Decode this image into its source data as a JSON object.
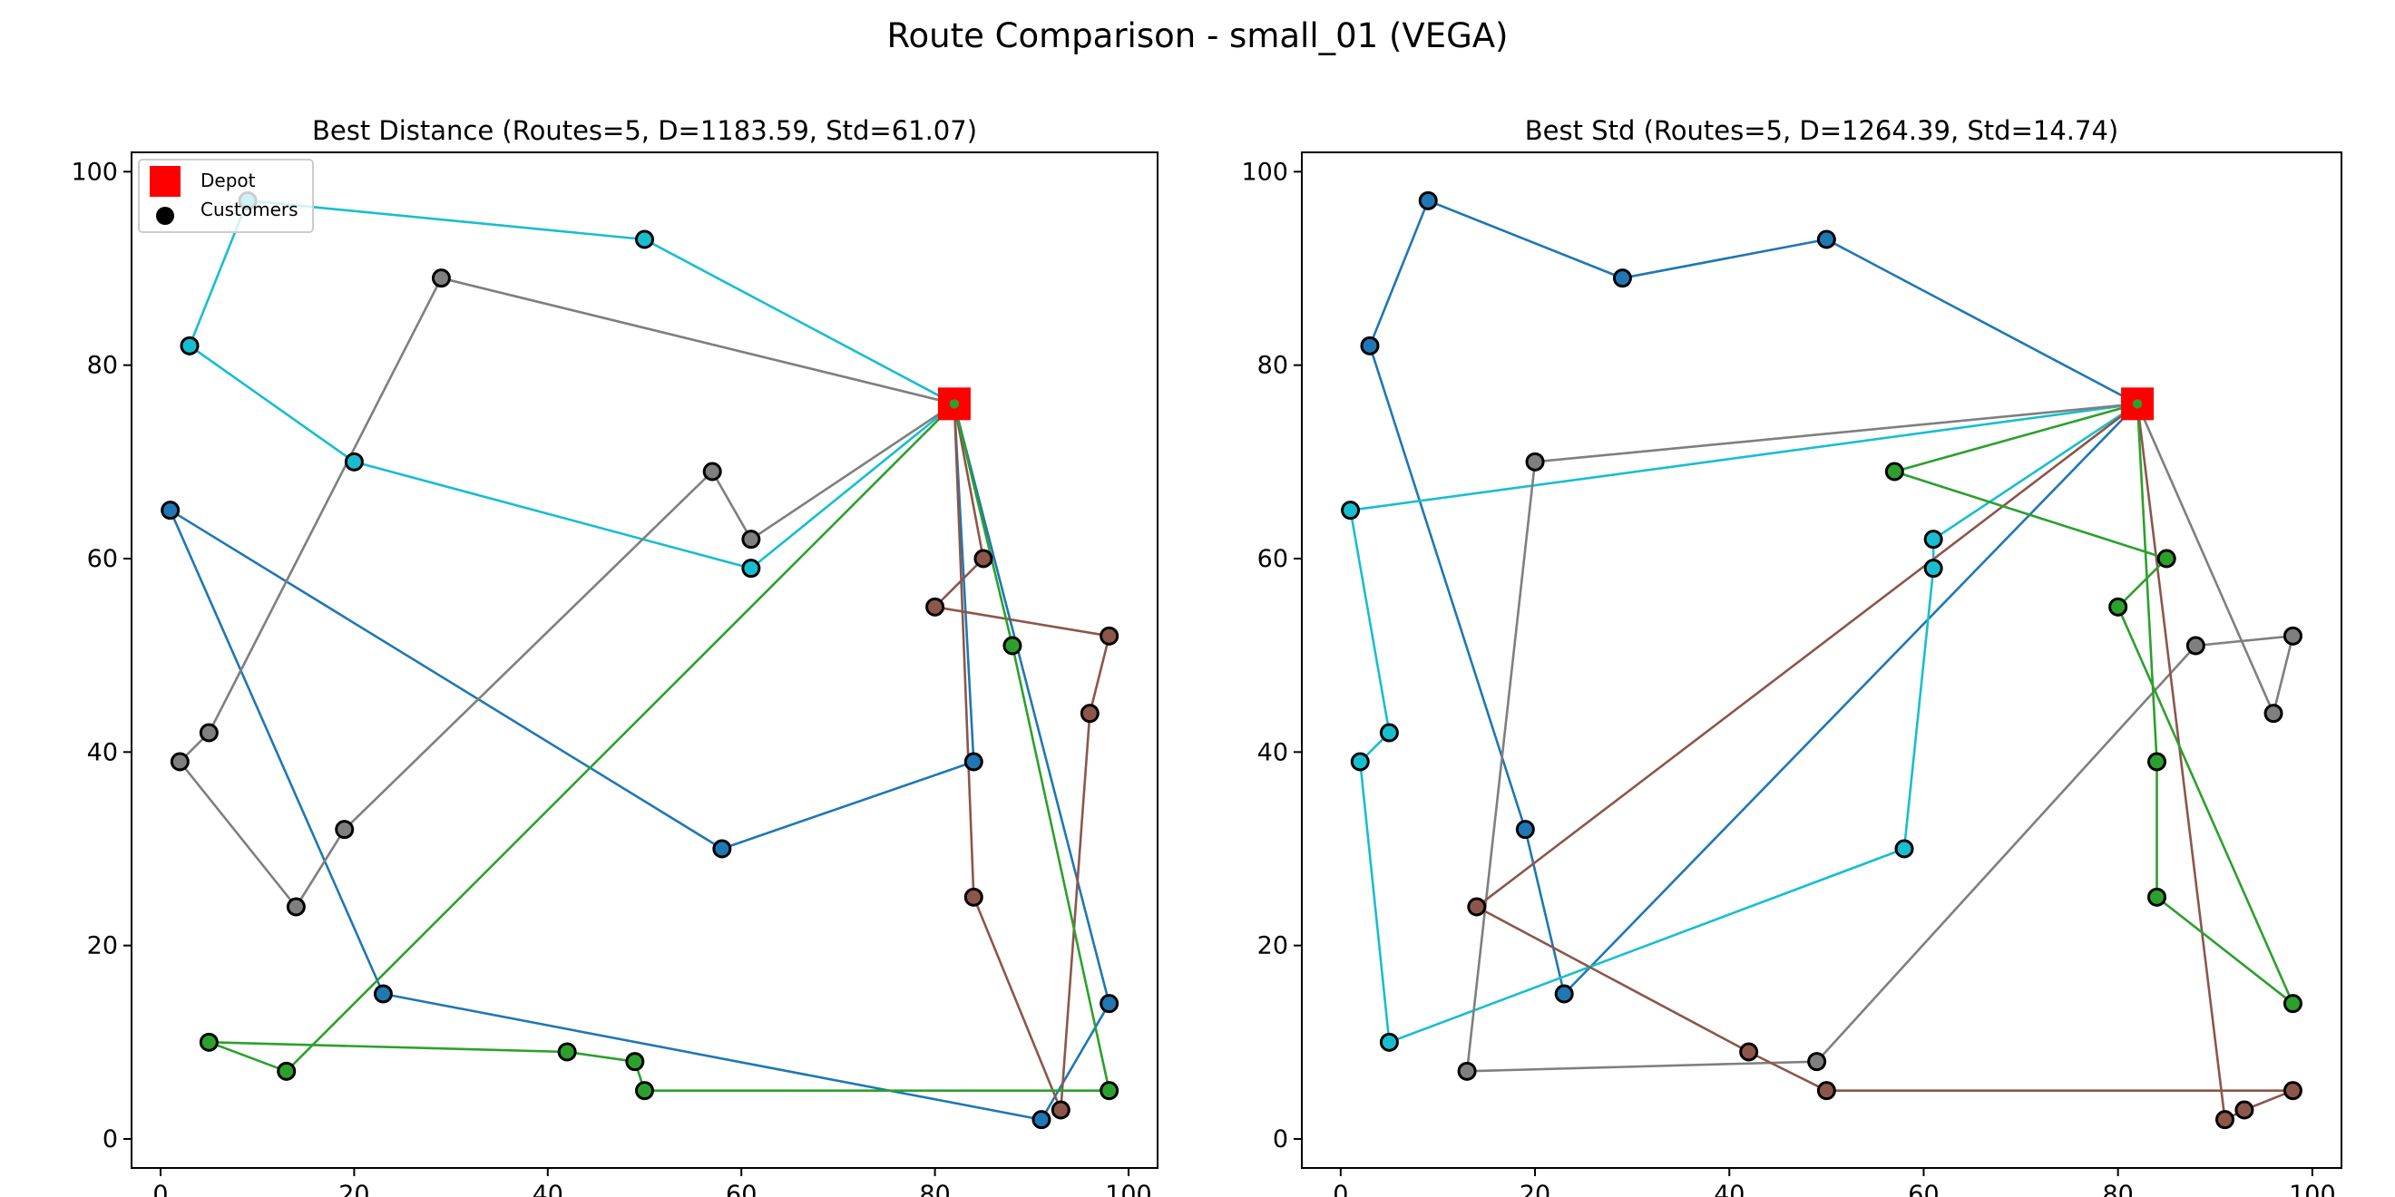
{
  "figure": {
    "title": "Route Comparison - small_01 (VEGA)"
  },
  "chart_data": [
    {
      "type": "scatter",
      "title": "Best Distance (Routes=5, D=1183.59, Std=61.07)",
      "xlabel": "",
      "ylabel": "",
      "xlim": [
        -3,
        103
      ],
      "ylim": [
        -3,
        102
      ],
      "xticks": [
        0,
        20,
        40,
        60,
        80,
        100
      ],
      "yticks": [
        0,
        20,
        40,
        60,
        80,
        100
      ],
      "grid": false,
      "legend": {
        "placement": "top-left",
        "entries": [
          {
            "label": "Depot",
            "marker": "square",
            "color": "#ff0000"
          },
          {
            "label": "Customers",
            "marker": "circle",
            "color": "#000000"
          }
        ]
      },
      "depot": [
        82,
        76
      ],
      "routes": [
        {
          "color": "#1f77b4",
          "points": [
            [
              82,
              76
            ],
            [
              84,
              39
            ],
            [
              58,
              30
            ],
            [
              1,
              65
            ],
            [
              23,
              15
            ],
            [
              91,
              2
            ],
            [
              98,
              14
            ],
            [
              82,
              76
            ]
          ]
        },
        {
          "color": "#17becf",
          "points": [
            [
              82,
              76
            ],
            [
              50,
              93
            ],
            [
              9,
              97
            ],
            [
              3,
              82
            ],
            [
              20,
              70
            ],
            [
              61,
              59
            ],
            [
              82,
              76
            ]
          ]
        },
        {
          "color": "#7f7f7f",
          "points": [
            [
              82,
              76
            ],
            [
              29,
              89
            ],
            [
              5,
              42
            ],
            [
              2,
              39
            ],
            [
              14,
              24
            ],
            [
              19,
              32
            ],
            [
              57,
              69
            ],
            [
              61,
              62
            ],
            [
              82,
              76
            ]
          ]
        },
        {
          "color": "#8c564b",
          "points": [
            [
              82,
              76
            ],
            [
              85,
              60
            ],
            [
              80,
              55
            ],
            [
              98,
              52
            ],
            [
              96,
              44
            ],
            [
              93,
              3
            ],
            [
              84,
              25
            ],
            [
              82,
              76
            ]
          ]
        },
        {
          "color": "#2ca02c",
          "points": [
            [
              82,
              76
            ],
            [
              88,
              51
            ],
            [
              98,
              5
            ],
            [
              50,
              5
            ],
            [
              49,
              8
            ],
            [
              42,
              9
            ],
            [
              5,
              10
            ],
            [
              13,
              7
            ],
            [
              82,
              76
            ]
          ]
        }
      ]
    },
    {
      "type": "scatter",
      "title": "Best Std (Routes=5, D=1264.39, Std=14.74)",
      "xlabel": "",
      "ylabel": "",
      "xlim": [
        -4,
        103
      ],
      "ylim": [
        -3,
        102
      ],
      "xticks": [
        0,
        20,
        40,
        60,
        80,
        100
      ],
      "yticks": [
        0,
        20,
        40,
        60,
        80,
        100
      ],
      "grid": false,
      "depot": [
        82,
        76
      ],
      "routes": [
        {
          "color": "#1f77b4",
          "points": [
            [
              82,
              76
            ],
            [
              50,
              93
            ],
            [
              29,
              89
            ],
            [
              9,
              97
            ],
            [
              3,
              82
            ],
            [
              19,
              32
            ],
            [
              23,
              15
            ],
            [
              82,
              76
            ]
          ]
        },
        {
          "color": "#17becf",
          "points": [
            [
              82,
              76
            ],
            [
              1,
              65
            ],
            [
              5,
              42
            ],
            [
              2,
              39
            ],
            [
              5,
              10
            ],
            [
              58,
              30
            ],
            [
              61,
              59
            ],
            [
              61,
              62
            ],
            [
              82,
              76
            ]
          ]
        },
        {
          "color": "#7f7f7f",
          "points": [
            [
              82,
              76
            ],
            [
              96,
              44
            ],
            [
              98,
              52
            ],
            [
              88,
              51
            ],
            [
              49,
              8
            ],
            [
              13,
              7
            ],
            [
              20,
              70
            ],
            [
              82,
              76
            ]
          ]
        },
        {
          "color": "#8c564b",
          "points": [
            [
              82,
              76
            ],
            [
              91,
              2
            ],
            [
              93,
              3
            ],
            [
              98,
              5
            ],
            [
              50,
              5
            ],
            [
              42,
              9
            ],
            [
              14,
              24
            ],
            [
              82,
              76
            ]
          ]
        },
        {
          "color": "#2ca02c",
          "points": [
            [
              82,
              76
            ],
            [
              84,
              39
            ],
            [
              84,
              25
            ],
            [
              98,
              14
            ],
            [
              80,
              55
            ],
            [
              85,
              60
            ],
            [
              57,
              69
            ],
            [
              82,
              76
            ]
          ]
        }
      ]
    }
  ]
}
